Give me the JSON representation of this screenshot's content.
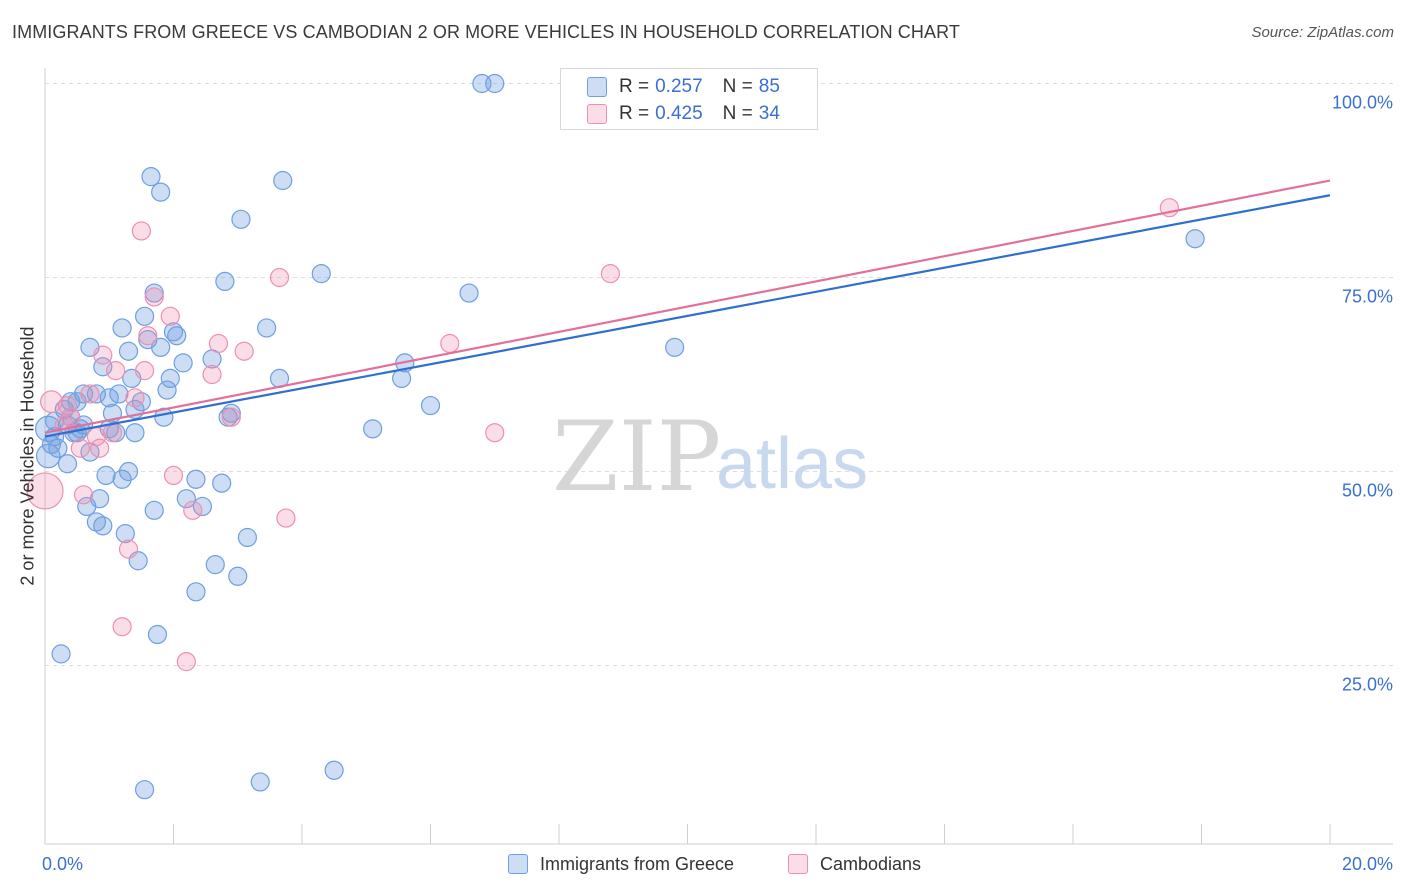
{
  "header": {
    "title": "IMMIGRANTS FROM GREECE VS CAMBODIAN 2 OR MORE VEHICLES IN HOUSEHOLD CORRELATION CHART",
    "source": "Source: ZipAtlas.com"
  },
  "watermark": {
    "zip": "ZIP",
    "atlas": "atlas"
  },
  "legend": {
    "rows": [
      {
        "r_label": "R =",
        "r_value": "0.257",
        "n_label": "N =",
        "n_value": "85",
        "color": "#6f9fe0"
      },
      {
        "r_label": "R =",
        "r_value": "0.425",
        "n_label": "N =",
        "n_value": "34",
        "color": "#ee8fb0"
      }
    ]
  },
  "bottom_legend": {
    "items": [
      {
        "label": "Immigrants from Greece",
        "color": "#6f9fe0"
      },
      {
        "label": "Cambodians",
        "color": "#ee8fb0"
      }
    ]
  },
  "chart_data": {
    "type": "scatter",
    "title": "IMMIGRANTS FROM GREECE VS CAMBODIAN 2 OR MORE VEHICLES IN HOUSEHOLD CORRELATION CHART",
    "xlabel": "",
    "ylabel": "2 or more Vehicles in Household",
    "xlim": [
      0,
      20
    ],
    "ylim": [
      2,
      102
    ],
    "x_tick_labels": [
      {
        "value": 0,
        "label": "0.0%"
      },
      {
        "value": 20,
        "label": "20.0%"
      }
    ],
    "y_tick_labels": [
      {
        "value": 100,
        "label": "100.0%"
      },
      {
        "value": 75,
        "label": "75.0%"
      },
      {
        "value": 50,
        "label": "50.0%"
      },
      {
        "value": 25,
        "label": "25.0%"
      }
    ],
    "gridlines_y": [
      100,
      75,
      50,
      25
    ],
    "series": [
      {
        "name": "Immigrants from Greece",
        "color": "#6f9fe0",
        "trend": {
          "x": [
            0,
            20
          ],
          "y": [
            54.5,
            85.6
          ]
        },
        "points": [
          {
            "x": 0.05,
            "y": 55.5,
            "s": 1.4
          },
          {
            "x": 0.05,
            "y": 52.0,
            "s": 1.3
          },
          {
            "x": 0.1,
            "y": 53.5
          },
          {
            "x": 0.15,
            "y": 56.5
          },
          {
            "x": 0.2,
            "y": 53.0
          },
          {
            "x": 0.3,
            "y": 58.0
          },
          {
            "x": 0.35,
            "y": 56.0
          },
          {
            "x": 0.35,
            "y": 51.0
          },
          {
            "x": 0.4,
            "y": 57.0
          },
          {
            "x": 0.45,
            "y": 55.0
          },
          {
            "x": 0.5,
            "y": 59.0
          },
          {
            "x": 0.55,
            "y": 55.5
          },
          {
            "x": 0.6,
            "y": 60.0
          },
          {
            "x": 0.65,
            "y": 45.5
          },
          {
            "x": 0.7,
            "y": 66.0
          },
          {
            "x": 0.7,
            "y": 52.5
          },
          {
            "x": 0.8,
            "y": 43.5
          },
          {
            "x": 0.8,
            "y": 60.0
          },
          {
            "x": 0.85,
            "y": 46.5
          },
          {
            "x": 0.9,
            "y": 63.5
          },
          {
            "x": 0.9,
            "y": 43.0
          },
          {
            "x": 0.95,
            "y": 49.5
          },
          {
            "x": 1.0,
            "y": 55.5
          },
          {
            "x": 1.05,
            "y": 57.5
          },
          {
            "x": 1.1,
            "y": 55.0
          },
          {
            "x": 1.15,
            "y": 60.0
          },
          {
            "x": 1.2,
            "y": 68.5
          },
          {
            "x": 1.2,
            "y": 49.0
          },
          {
            "x": 1.25,
            "y": 42.0
          },
          {
            "x": 1.3,
            "y": 65.5
          },
          {
            "x": 1.3,
            "y": 50.0
          },
          {
            "x": 1.35,
            "y": 62.0
          },
          {
            "x": 1.4,
            "y": 58.0
          },
          {
            "x": 1.4,
            "y": 55.0
          },
          {
            "x": 1.45,
            "y": 38.5
          },
          {
            "x": 1.5,
            "y": 59.0
          },
          {
            "x": 1.55,
            "y": 9.0
          },
          {
            "x": 1.55,
            "y": 70.0
          },
          {
            "x": 1.6,
            "y": 67.0
          },
          {
            "x": 1.65,
            "y": 88.0
          },
          {
            "x": 1.7,
            "y": 73.0
          },
          {
            "x": 1.7,
            "y": 45.0
          },
          {
            "x": 1.75,
            "y": 29.0
          },
          {
            "x": 1.8,
            "y": 86.0
          },
          {
            "x": 1.8,
            "y": 66.0
          },
          {
            "x": 1.85,
            "y": 57.0
          },
          {
            "x": 1.9,
            "y": 60.5
          },
          {
            "x": 1.95,
            "y": 62.0
          },
          {
            "x": 2.0,
            "y": 68.0
          },
          {
            "x": 2.05,
            "y": 67.5
          },
          {
            "x": 2.15,
            "y": 64.0
          },
          {
            "x": 2.2,
            "y": 46.5
          },
          {
            "x": 2.35,
            "y": 34.5
          },
          {
            "x": 2.35,
            "y": 49.0
          },
          {
            "x": 2.45,
            "y": 45.5
          },
          {
            "x": 2.6,
            "y": 64.5
          },
          {
            "x": 2.65,
            "y": 38.0
          },
          {
            "x": 2.75,
            "y": 48.5
          },
          {
            "x": 2.8,
            "y": 74.5
          },
          {
            "x": 2.85,
            "y": 57.0
          },
          {
            "x": 2.9,
            "y": 57.5
          },
          {
            "x": 3.0,
            "y": 36.5
          },
          {
            "x": 3.05,
            "y": 82.5
          },
          {
            "x": 3.15,
            "y": 41.5
          },
          {
            "x": 3.35,
            "y": 10.0
          },
          {
            "x": 3.45,
            "y": 68.5
          },
          {
            "x": 3.65,
            "y": 62.0
          },
          {
            "x": 3.7,
            "y": 87.5
          },
          {
            "x": 4.3,
            "y": 75.5
          },
          {
            "x": 4.5,
            "y": 11.5
          },
          {
            "x": 5.1,
            "y": 55.5
          },
          {
            "x": 5.55,
            "y": 62.0
          },
          {
            "x": 5.6,
            "y": 64.0
          },
          {
            "x": 6.0,
            "y": 58.5
          },
          {
            "x": 6.6,
            "y": 73.0
          },
          {
            "x": 6.8,
            "y": 100.0
          },
          {
            "x": 7.0,
            "y": 100.0
          },
          {
            "x": 9.8,
            "y": 66.0
          },
          {
            "x": 17.9,
            "y": 80.0
          },
          {
            "x": 0.25,
            "y": 26.5
          },
          {
            "x": 0.4,
            "y": 59.0
          },
          {
            "x": 0.6,
            "y": 56.0
          },
          {
            "x": 1.0,
            "y": 59.5
          },
          {
            "x": 0.15,
            "y": 54.5
          },
          {
            "x": 0.5,
            "y": 55.0
          }
        ]
      },
      {
        "name": "Cambodians",
        "color": "#ee8fb0",
        "trend": {
          "x": [
            0,
            20
          ],
          "y": [
            55.0,
            87.5
          ]
        },
        "points": [
          {
            "x": 0.0,
            "y": 47.5,
            "s": 2.0
          },
          {
            "x": 0.1,
            "y": 59.0,
            "s": 1.2
          },
          {
            "x": 0.35,
            "y": 58.5
          },
          {
            "x": 0.4,
            "y": 57.0
          },
          {
            "x": 0.55,
            "y": 53.0
          },
          {
            "x": 0.6,
            "y": 47.0
          },
          {
            "x": 0.7,
            "y": 60.0
          },
          {
            "x": 0.8,
            "y": 54.5
          },
          {
            "x": 0.85,
            "y": 53.0
          },
          {
            "x": 0.9,
            "y": 65.0
          },
          {
            "x": 1.05,
            "y": 55.0
          },
          {
            "x": 1.1,
            "y": 63.0
          },
          {
            "x": 1.2,
            "y": 30.0
          },
          {
            "x": 1.3,
            "y": 40.0
          },
          {
            "x": 1.4,
            "y": 59.5
          },
          {
            "x": 1.5,
            "y": 81.0
          },
          {
            "x": 1.55,
            "y": 63.0
          },
          {
            "x": 1.6,
            "y": 67.5
          },
          {
            "x": 1.7,
            "y": 72.5
          },
          {
            "x": 1.95,
            "y": 70.0
          },
          {
            "x": 2.0,
            "y": 49.5
          },
          {
            "x": 2.2,
            "y": 25.5
          },
          {
            "x": 2.3,
            "y": 45.0
          },
          {
            "x": 2.6,
            "y": 62.5
          },
          {
            "x": 2.7,
            "y": 66.5
          },
          {
            "x": 2.9,
            "y": 57.0
          },
          {
            "x": 3.1,
            "y": 65.5
          },
          {
            "x": 3.65,
            "y": 75.0
          },
          {
            "x": 3.75,
            "y": 44.0
          },
          {
            "x": 6.3,
            "y": 66.5
          },
          {
            "x": 7.0,
            "y": 55.0
          },
          {
            "x": 8.8,
            "y": 75.5
          },
          {
            "x": 17.5,
            "y": 84.0
          },
          {
            "x": 0.3,
            "y": 56.0
          }
        ]
      }
    ]
  }
}
